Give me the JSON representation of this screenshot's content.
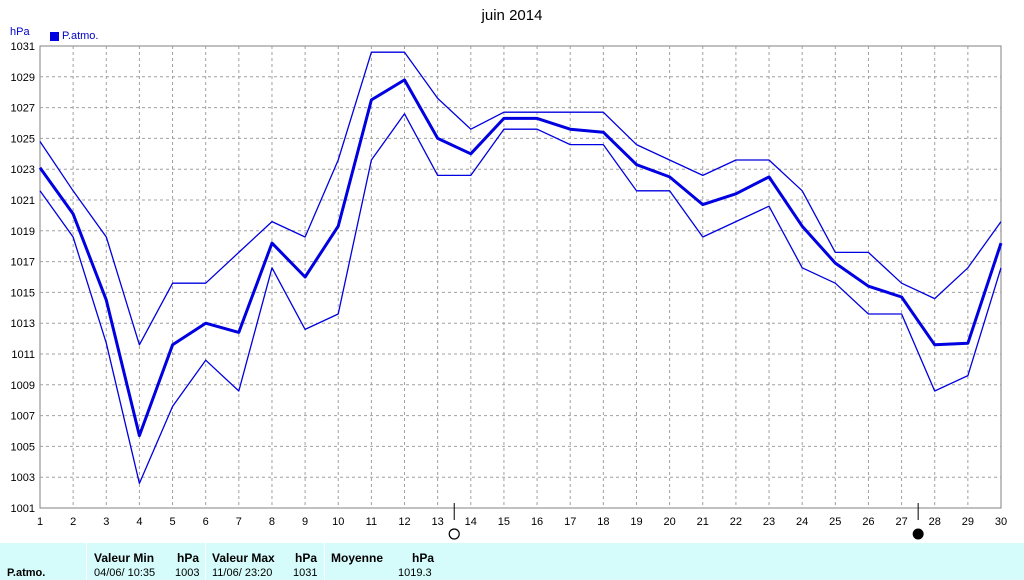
{
  "title": "juin 2014",
  "unit_label": "hPa",
  "legend_label": "P.atmo.",
  "colors": {
    "series": "#0000e0",
    "grid": "#a0a0a0",
    "stats_bg": "#d6fbfb"
  },
  "chart_data": {
    "type": "line",
    "title": "juin 2014",
    "ylabel": "hPa",
    "ylim": [
      1001,
      1031
    ],
    "x": [
      1,
      2,
      3,
      4,
      5,
      6,
      7,
      8,
      9,
      10,
      11,
      12,
      13,
      14,
      15,
      16,
      17,
      18,
      19,
      20,
      21,
      22,
      23,
      24,
      25,
      26,
      27,
      28,
      29,
      30
    ],
    "y_ticks": [
      1001,
      1003,
      1005,
      1007,
      1009,
      1011,
      1013,
      1015,
      1017,
      1019,
      1021,
      1023,
      1025,
      1027,
      1029,
      1031
    ],
    "series": [
      {
        "name": "P.atmo.",
        "role": "mean",
        "values": [
          1023.1,
          1020.1,
          1014.5,
          1005.7,
          1011.6,
          1013.0,
          1012.4,
          1018.2,
          1016.0,
          1019.3,
          1027.5,
          1028.8,
          1025.0,
          1024.0,
          1026.3,
          1026.3,
          1025.6,
          1025.4,
          1023.3,
          1022.5,
          1020.7,
          1021.4,
          1022.5,
          1019.3,
          1016.9,
          1015.4,
          1014.7,
          1011.6,
          1011.7,
          1018.2
        ]
      },
      {
        "role": "max",
        "values": [
          1024.8,
          1021.6,
          1018.6,
          1011.6,
          1015.6,
          1015.6,
          1017.6,
          1019.6,
          1018.6,
          1023.6,
          1030.6,
          1030.6,
          1027.6,
          1025.6,
          1026.7,
          1026.7,
          1026.7,
          1026.7,
          1024.6,
          1023.6,
          1022.6,
          1023.6,
          1023.6,
          1021.6,
          1017.6,
          1017.6,
          1015.6,
          1014.6,
          1016.6,
          1019.6
        ]
      },
      {
        "role": "min",
        "values": [
          1021.6,
          1018.6,
          1011.7,
          1002.6,
          1007.6,
          1010.6,
          1008.6,
          1016.6,
          1012.6,
          1013.6,
          1023.6,
          1026.6,
          1022.6,
          1022.6,
          1025.6,
          1025.6,
          1024.6,
          1024.6,
          1021.6,
          1021.6,
          1018.6,
          1019.6,
          1020.6,
          1016.6,
          1015.6,
          1013.6,
          1013.6,
          1008.6,
          1009.6,
          1016.6
        ]
      }
    ],
    "moon_markers": [
      {
        "day": 13,
        "phase": "full-moon"
      },
      {
        "day": 27,
        "phase": "new-moon"
      }
    ],
    "grid": true,
    "legend_position": "top-left"
  },
  "stats": {
    "row_label": "P.atmo.",
    "min_header": "Valeur Min",
    "min_unit": "hPa",
    "min_date": "04/06/  10:35",
    "min_value": "1003",
    "max_header": "Valeur Max",
    "max_unit": "hPa",
    "max_date": "11/06/  23:20",
    "max_value": "1031",
    "mean_header": "Moyenne",
    "mean_unit": "hPa",
    "mean_value": "1019.3"
  }
}
